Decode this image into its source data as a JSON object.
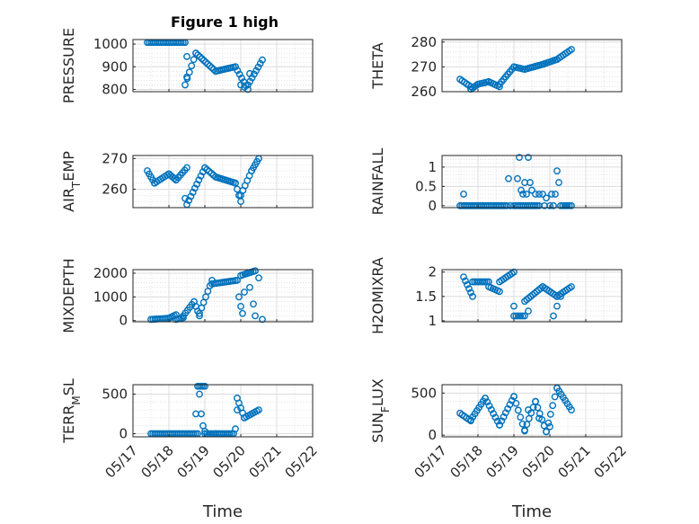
{
  "figure": {
    "title": "Figure 1 high",
    "marker_color": "#0072bd"
  },
  "chart_data": [
    {
      "type": "scatter",
      "ylabel": "PRESSURE",
      "ylabel_sub": "",
      "ylim": [
        790,
        1020
      ],
      "yticks": [
        800,
        900,
        1000
      ],
      "xlim": [
        0,
        5
      ],
      "xticks": [],
      "grid": "on",
      "xlabel": "",
      "segments": [
        [
          0.4,
          1.45,
          1007,
          1007
        ],
        [
          1.45,
          1.75,
          820,
          960
        ],
        [
          1.75,
          2.3,
          960,
          880
        ],
        [
          2.3,
          2.85,
          880,
          900
        ],
        [
          2.85,
          3.2,
          900,
          800
        ],
        [
          3.2,
          3.6,
          820,
          930
        ]
      ],
      "points": [
        [
          1.5,
          945
        ],
        [
          1.5,
          855
        ],
        [
          3.0,
          820
        ],
        [
          3.1,
          810
        ],
        [
          3.25,
          870
        ]
      ]
    },
    {
      "type": "scatter",
      "ylabel": "THETA",
      "ylabel_sub": "",
      "ylim": [
        260,
        281
      ],
      "yticks": [
        260,
        270,
        280
      ],
      "xlim": [
        0,
        5
      ],
      "xticks": [],
      "grid": "on",
      "xlabel": "",
      "segments": [
        [
          0.5,
          0.8,
          265,
          262
        ],
        [
          0.8,
          1.0,
          261,
          263
        ],
        [
          1.0,
          1.3,
          263,
          264
        ],
        [
          1.3,
          1.6,
          264,
          262
        ],
        [
          1.6,
          2.0,
          263,
          270
        ],
        [
          2.0,
          2.3,
          270,
          269
        ],
        [
          2.3,
          2.8,
          269,
          271
        ],
        [
          2.8,
          3.2,
          271,
          273
        ],
        [
          3.2,
          3.6,
          273,
          277
        ]
      ],
      "points": []
    },
    {
      "type": "scatter",
      "ylabel": "AIR",
      "ylabel_sub": "T",
      "ylabel_rest": "EMP",
      "ylim": [
        254,
        271
      ],
      "yticks": [
        260,
        270
      ],
      "xlim": [
        0,
        5
      ],
      "xticks": [],
      "grid": "on",
      "xlabel": "",
      "segments": [
        [
          0.4,
          0.6,
          266,
          262
        ],
        [
          0.6,
          1.0,
          262,
          265
        ],
        [
          1.0,
          1.2,
          265,
          263
        ],
        [
          1.2,
          1.5,
          263,
          267
        ],
        [
          1.5,
          2.0,
          255,
          267
        ],
        [
          2.0,
          2.3,
          267,
          264
        ],
        [
          2.3,
          2.85,
          264,
          262
        ],
        [
          2.85,
          3.0,
          262,
          256
        ],
        [
          3.0,
          3.3,
          258,
          266
        ],
        [
          3.3,
          3.5,
          266,
          270
        ]
      ],
      "points": [
        [
          1.45,
          257
        ],
        [
          2.95,
          258
        ]
      ]
    },
    {
      "type": "scatter",
      "ylabel": "RAINFALL",
      "ylabel_sub": "",
      "ylim": [
        -0.05,
        1.3
      ],
      "yticks": [
        0,
        0.5,
        1
      ],
      "ytick_labels": [
        "0",
        "0.5",
        "1"
      ],
      "xlim": [
        0,
        5
      ],
      "xticks": [],
      "grid": "on",
      "xlabel": "",
      "segments": [
        [
          0.5,
          1.8,
          0,
          0
        ],
        [
          2.0,
          2.7,
          0,
          0
        ],
        [
          3.3,
          3.6,
          0,
          0
        ]
      ],
      "points": [
        [
          0.6,
          0.3
        ],
        [
          1.85,
          0.7
        ],
        [
          1.9,
          0
        ],
        [
          2.1,
          0.7
        ],
        [
          2.15,
          1.25
        ],
        [
          2.2,
          0.4
        ],
        [
          2.25,
          0.3
        ],
        [
          2.3,
          0.6
        ],
        [
          2.35,
          0.3
        ],
        [
          2.4,
          1.25
        ],
        [
          2.45,
          0.6
        ],
        [
          2.5,
          0.4
        ],
        [
          2.6,
          0.3
        ],
        [
          2.7,
          0.3
        ],
        [
          2.8,
          0.3
        ],
        [
          2.85,
          0
        ],
        [
          2.9,
          0.2
        ],
        [
          3.0,
          0
        ],
        [
          3.05,
          0.3
        ],
        [
          3.1,
          0
        ],
        [
          3.15,
          0.3
        ],
        [
          3.2,
          0.9
        ],
        [
          3.25,
          0.6
        ]
      ]
    },
    {
      "type": "scatter",
      "ylabel": "MIXDEPTH",
      "ylabel_sub": "",
      "ylim": [
        -50,
        2150
      ],
      "yticks": [
        0,
        1000,
        2000
      ],
      "xlim": [
        0,
        5
      ],
      "xticks": [],
      "grid": "on",
      "xlabel": "",
      "segments": [
        [
          0.5,
          1.0,
          50,
          100
        ],
        [
          1.0,
          1.2,
          100,
          250
        ],
        [
          1.2,
          1.4,
          50,
          120
        ],
        [
          1.4,
          1.7,
          200,
          800
        ],
        [
          1.7,
          1.85,
          800,
          200
        ],
        [
          1.85,
          2.2,
          300,
          1700
        ],
        [
          2.2,
          2.9,
          1550,
          1700
        ],
        [
          3.0,
          3.4,
          1900,
          2100
        ]
      ],
      "points": [
        [
          2.95,
          1000
        ],
        [
          3.0,
          600
        ],
        [
          3.05,
          300
        ],
        [
          3.1,
          1200
        ],
        [
          3.25,
          1400
        ],
        [
          3.35,
          700
        ],
        [
          3.4,
          200
        ],
        [
          3.5,
          1800
        ],
        [
          3.6,
          50
        ]
      ]
    },
    {
      "type": "scatter",
      "ylabel": "H2OMIXRA",
      "ylabel_sub": "",
      "ylim": [
        0.98,
        2.05
      ],
      "yticks": [
        1,
        1.5,
        2
      ],
      "ytick_labels": [
        "1",
        "1.5",
        "2"
      ],
      "xlim": [
        0,
        5
      ],
      "xticks": [],
      "grid": "on",
      "xlabel": "",
      "segments": [
        [
          0.6,
          0.85,
          1.9,
          1.5
        ],
        [
          0.85,
          1.3,
          1.8,
          1.8
        ],
        [
          1.3,
          1.6,
          1.7,
          1.6
        ],
        [
          1.6,
          2.0,
          1.8,
          2.0
        ],
        [
          2.0,
          2.3,
          1.1,
          1.1
        ],
        [
          2.3,
          2.8,
          1.4,
          1.7
        ],
        [
          2.8,
          3.2,
          1.7,
          1.5
        ],
        [
          3.2,
          3.6,
          1.5,
          1.7
        ]
      ],
      "points": [
        [
          2.0,
          1.3
        ],
        [
          2.4,
          1.2
        ],
        [
          3.1,
          1.1
        ],
        [
          3.2,
          1.3
        ],
        [
          3.3,
          1.5
        ]
      ]
    },
    {
      "type": "scatter",
      "ylabel": "TERR",
      "ylabel_sub": "M",
      "ylabel_rest": "SL",
      "ylim": [
        -40,
        620
      ],
      "yticks": [
        0,
        500
      ],
      "xlim": [
        0,
        5
      ],
      "xticks": [
        0,
        1,
        2,
        3,
        4,
        5
      ],
      "xtick_labels": [
        "05/17",
        "05/18",
        "05/19",
        "05/20",
        "05/21",
        "05/22"
      ],
      "grid": "on",
      "xlabel": "Time",
      "segments": [
        [
          0.5,
          1.8,
          0,
          0
        ],
        [
          1.8,
          2.0,
          600,
          600
        ],
        [
          2.0,
          2.3,
          0,
          0
        ],
        [
          2.3,
          2.8,
          0,
          0
        ],
        [
          2.9,
          3.1,
          450,
          200
        ],
        [
          3.1,
          3.5,
          200,
          300
        ]
      ],
      "points": [
        [
          1.75,
          250
        ],
        [
          1.85,
          500
        ],
        [
          1.9,
          250
        ],
        [
          1.95,
          100
        ],
        [
          2.0,
          30
        ],
        [
          2.85,
          60
        ],
        [
          2.9,
          300
        ]
      ]
    },
    {
      "type": "scatter",
      "ylabel": "SUN",
      "ylabel_sub": "F",
      "ylabel_rest": "LUX",
      "ylim": [
        -20,
        600
      ],
      "yticks": [
        0,
        500
      ],
      "xlim": [
        0,
        5
      ],
      "xticks": [
        0,
        1,
        2,
        3,
        4,
        5
      ],
      "xtick_labels": [
        "05/17",
        "05/18",
        "05/19",
        "05/20",
        "05/21",
        "05/22"
      ],
      "grid": "on",
      "xlabel": "Time",
      "segments": [
        [
          0.5,
          0.8,
          260,
          170
        ],
        [
          0.8,
          1.2,
          180,
          440
        ],
        [
          1.2,
          1.6,
          440,
          120
        ],
        [
          1.6,
          2.0,
          120,
          460
        ],
        [
          2.0,
          2.3,
          460,
          50
        ],
        [
          2.3,
          2.6,
          60,
          400
        ],
        [
          2.6,
          2.9,
          400,
          40
        ],
        [
          2.9,
          3.2,
          40,
          560
        ],
        [
          3.2,
          3.6,
          560,
          300
        ]
      ],
      "points": [
        [
          2.4,
          300
        ],
        [
          2.7,
          200
        ],
        [
          3.0,
          100
        ]
      ]
    }
  ]
}
